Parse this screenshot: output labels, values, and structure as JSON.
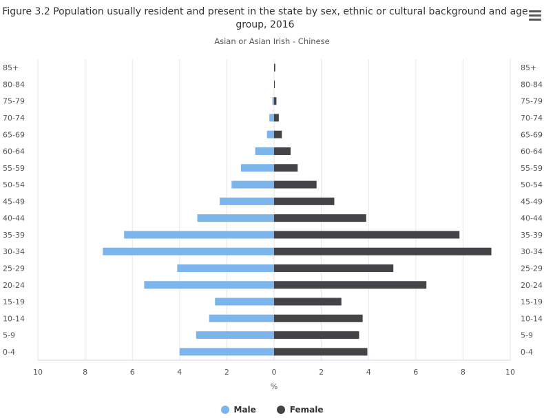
{
  "menu_icon": "hamburger-menu-icon",
  "chart_data": {
    "type": "bar",
    "orientation": "horizontal",
    "title": "Figure 3.2 Population usually resident and present in the state by sex, ethnic or cultural background and age group, 2016",
    "subtitle": "Asian or Asian Irish - Chinese",
    "xlabel": "%",
    "xlim": [
      -10,
      10
    ],
    "xticks": [
      10,
      8,
      6,
      4,
      2,
      0,
      2,
      4,
      6,
      8,
      10
    ],
    "grid": true,
    "legend_position": "bottom-center",
    "categories": [
      "85+",
      "80-84",
      "75-79",
      "70-74",
      "65-69",
      "60-64",
      "55-59",
      "50-54",
      "45-49",
      "40-44",
      "35-39",
      "30-34",
      "25-29",
      "20-24",
      "15-19",
      "10-14",
      "5-9",
      "0-4"
    ],
    "series": [
      {
        "name": "Male",
        "color": "#7cb5ec",
        "values": [
          0.0,
          0.0,
          0.07,
          0.2,
          0.3,
          0.8,
          1.4,
          1.8,
          2.3,
          3.25,
          6.35,
          7.25,
          4.1,
          5.5,
          2.5,
          2.75,
          3.3,
          4.0
        ]
      },
      {
        "name": "Female",
        "color": "#434348",
        "values": [
          0.05,
          0.03,
          0.1,
          0.2,
          0.33,
          0.7,
          1.0,
          1.8,
          2.55,
          3.9,
          7.85,
          9.2,
          5.05,
          6.45,
          2.85,
          3.75,
          3.6,
          3.95
        ]
      }
    ]
  }
}
